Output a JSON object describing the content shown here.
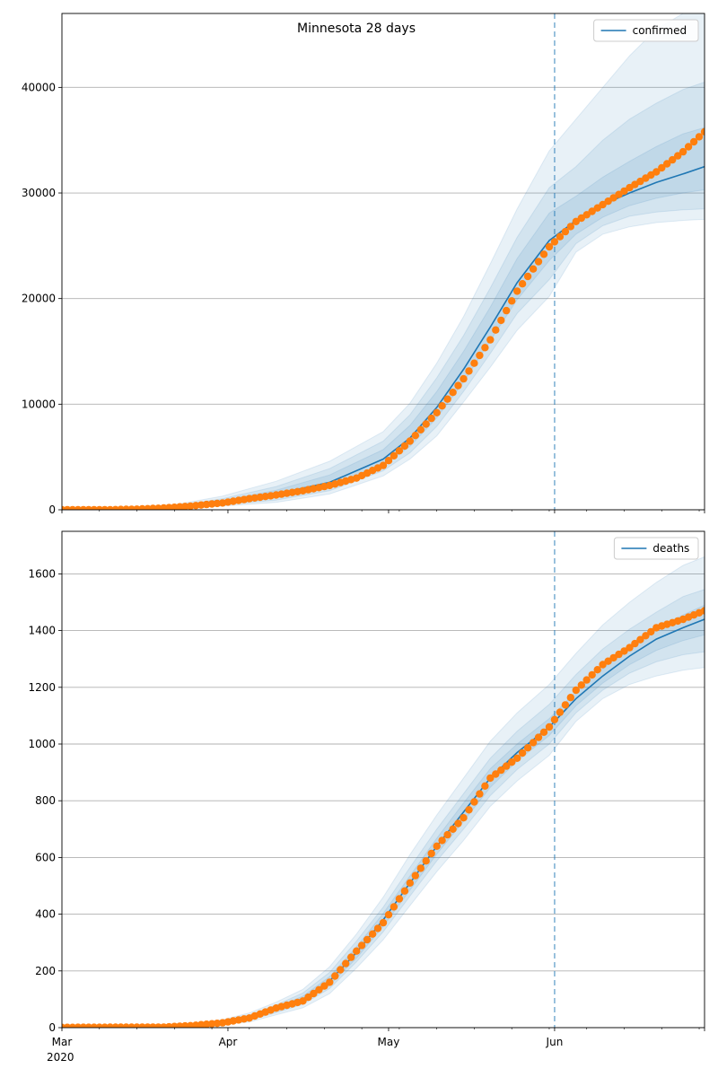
{
  "figure": {
    "title": "Minnesota 28 days"
  },
  "x_axis": {
    "start": "2020-03-01",
    "end": "2020-06-29",
    "major_ticks": [
      {
        "date": "2020-03-01",
        "label": "Mar"
      },
      {
        "date": "2020-04-01",
        "label": "Apr"
      },
      {
        "date": "2020-05-01",
        "label": "May"
      },
      {
        "date": "2020-06-01",
        "label": "Jun"
      }
    ],
    "year_label": "2020",
    "forecast_line_date": "2020-06-01"
  },
  "colors": {
    "forecast_line": "#1f77b4",
    "band": "#1f77b4",
    "observed": "#ff7f0e",
    "grid": "#b0b0b0"
  },
  "chart_data": [
    {
      "type": "line",
      "series_name": "confirmed",
      "legend_label": "confirmed",
      "legend_position": "top-right",
      "grid": true,
      "ylim": [
        0,
        47000
      ],
      "yticks": [
        0,
        10000,
        20000,
        30000,
        40000
      ],
      "observed": {
        "dates": [
          "2020-03-01",
          "2020-03-10",
          "2020-03-15",
          "2020-03-20",
          "2020-03-25",
          "2020-03-31",
          "2020-04-05",
          "2020-04-10",
          "2020-04-15",
          "2020-04-20",
          "2020-04-25",
          "2020-04-30",
          "2020-05-05",
          "2020-05-10",
          "2020-05-15",
          "2020-05-20",
          "2020-05-25",
          "2020-05-31",
          "2020-06-05",
          "2020-06-10",
          "2020-06-15",
          "2020-06-20",
          "2020-06-25",
          "2020-06-29"
        ],
        "values": [
          5,
          10,
          60,
          170,
          350,
          650,
          1050,
          1400,
          1800,
          2300,
          3000,
          4200,
          6500,
          9200,
          12400,
          16100,
          20700,
          24900,
          27300,
          28900,
          30500,
          32000,
          33900,
          35800
        ]
      },
      "forecast": {
        "dates": [
          "2020-03-01",
          "2020-03-20",
          "2020-03-31",
          "2020-04-10",
          "2020-04-20",
          "2020-04-30",
          "2020-05-05",
          "2020-05-10",
          "2020-05-15",
          "2020-05-20",
          "2020-05-25",
          "2020-05-31",
          "2020-06-05",
          "2020-06-10",
          "2020-06-15",
          "2020-06-20",
          "2020-06-25",
          "2020-06-29"
        ],
        "median": [
          0,
          150,
          700,
          1500,
          2600,
          4800,
          6800,
          9700,
          13300,
          17300,
          21500,
          25500,
          27400,
          28900,
          30000,
          31000,
          31800,
          32500
        ],
        "bands": [
          {
            "lower": [
              0,
              70,
              350,
              700,
              1500,
              3200,
              4800,
              7000,
              10200,
              13500,
              17000,
              20200,
              24400,
              26100,
              26800,
              27200,
              27400,
              27500
            ],
            "upper": [
              0,
              300,
              1300,
              2700,
              4600,
              7400,
              10100,
              13900,
              18300,
              23300,
              28500,
              34000,
              37000,
              40000,
              43000,
              45500,
              47000,
              47000
            ]
          },
          {
            "lower": [
              0,
              90,
              460,
              920,
              1800,
              3700,
              5400,
              7900,
              11200,
              14800,
              18600,
              21800,
              25200,
              26900,
              27800,
              28200,
              28400,
              28500
            ],
            "upper": [
              0,
              230,
              1050,
              2200,
              3900,
              6500,
              9000,
              12500,
              16500,
              21000,
              25800,
              30500,
              32500,
              35000,
              37000,
              38500,
              39800,
              40500
            ]
          },
          {
            "lower": [
              0,
              110,
              560,
              1150,
              2100,
              4200,
              6000,
              8700,
              12100,
              16000,
              19900,
              23600,
              26100,
              27700,
              28800,
              29500,
              30000,
              30300
            ],
            "upper": [
              0,
              190,
              880,
              1850,
              3300,
              5700,
              8000,
              11200,
              15000,
              19200,
              23800,
              28100,
              29700,
              31500,
              33000,
              34400,
              35600,
              36200
            ]
          }
        ]
      }
    },
    {
      "type": "line",
      "series_name": "deaths",
      "legend_label": "deaths",
      "legend_position": "top-right",
      "grid": true,
      "ylim": [
        0,
        1750
      ],
      "yticks": [
        0,
        200,
        400,
        600,
        800,
        1000,
        1200,
        1400,
        1600
      ],
      "observed": {
        "dates": [
          "2020-03-01",
          "2020-03-20",
          "2020-03-25",
          "2020-03-31",
          "2020-04-05",
          "2020-04-10",
          "2020-04-15",
          "2020-04-20",
          "2020-04-25",
          "2020-04-30",
          "2020-05-05",
          "2020-05-10",
          "2020-05-15",
          "2020-05-20",
          "2020-05-25",
          "2020-05-31",
          "2020-06-05",
          "2020-06-10",
          "2020-06-15",
          "2020-06-20",
          "2020-06-25",
          "2020-06-29"
        ],
        "values": [
          1,
          2,
          7,
          17,
          34,
          69,
          94,
          160,
          270,
          370,
          510,
          640,
          740,
          880,
          950,
          1060,
          1190,
          1280,
          1340,
          1410,
          1440,
          1470
        ]
      },
      "forecast": {
        "dates": [
          "2020-03-01",
          "2020-03-25",
          "2020-03-31",
          "2020-04-05",
          "2020-04-10",
          "2020-04-15",
          "2020-04-20",
          "2020-04-25",
          "2020-04-30",
          "2020-05-05",
          "2020-05-10",
          "2020-05-15",
          "2020-05-20",
          "2020-05-25",
          "2020-05-31",
          "2020-06-05",
          "2020-06-10",
          "2020-06-15",
          "2020-06-20",
          "2020-06-25",
          "2020-06-29"
        ],
        "median": [
          0,
          8,
          18,
          35,
          65,
          100,
          165,
          265,
          380,
          510,
          640,
          760,
          880,
          970,
          1060,
          1160,
          1240,
          1310,
          1370,
          1410,
          1440
        ],
        "bands": [
          {
            "lower": [
              0,
              3,
              10,
              20,
              45,
              70,
              120,
              210,
              310,
              430,
              550,
              660,
              780,
              870,
              960,
              1080,
              1160,
              1210,
              1240,
              1260,
              1270
            ],
            "upper": [
              0,
              14,
              28,
              52,
              90,
              135,
              215,
              330,
              460,
              610,
              750,
              880,
              1010,
              1110,
              1210,
              1320,
              1420,
              1500,
              1570,
              1630,
              1660
            ]
          },
          {
            "lower": [
              0,
              5,
              13,
              26,
              53,
              82,
              138,
              232,
              338,
              464,
              588,
              700,
              818,
              910,
              1000,
              1110,
              1190,
              1250,
              1290,
              1315,
              1325
            ],
            "upper": [
              0,
              12,
              24,
              45,
              80,
              122,
              195,
              305,
              425,
              565,
              700,
              825,
              950,
              1045,
              1140,
              1245,
              1335,
              1405,
              1465,
              1520,
              1545
            ]
          },
          {
            "lower": [
              0,
              6,
              15,
              30,
              58,
              90,
              150,
              245,
              357,
              485,
              612,
              728,
              847,
              940,
              1030,
              1135,
              1215,
              1280,
              1330,
              1365,
              1385
            ],
            "upper": [
              0,
              10,
              21,
              40,
              72,
              111,
              180,
              285,
              403,
              535,
              668,
              792,
              913,
              1000,
              1090,
              1185,
              1265,
              1340,
              1410,
              1455,
              1490
            ]
          }
        ]
      }
    }
  ]
}
